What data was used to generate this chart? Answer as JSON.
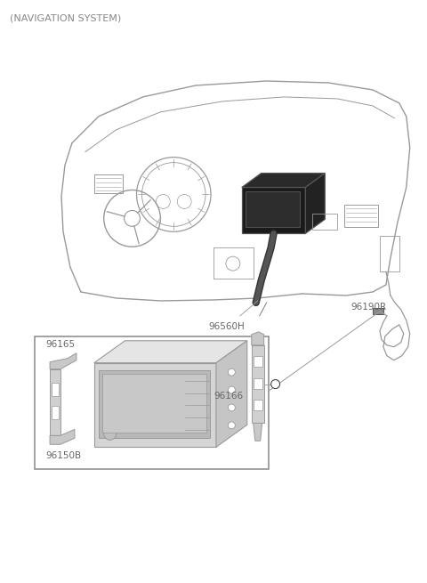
{
  "title": "(NAVIGATION SYSTEM)",
  "bg_color": "#ffffff",
  "line_color": "#999999",
  "dark_color": "#444444",
  "text_color": "#666666",
  "label_96560H": "96560H",
  "label_96190R": "96190R",
  "label_96165": "96165",
  "label_96166": "96166",
  "label_96150B": "96150B",
  "figsize": [
    4.8,
    6.55
  ],
  "dpi": 100
}
